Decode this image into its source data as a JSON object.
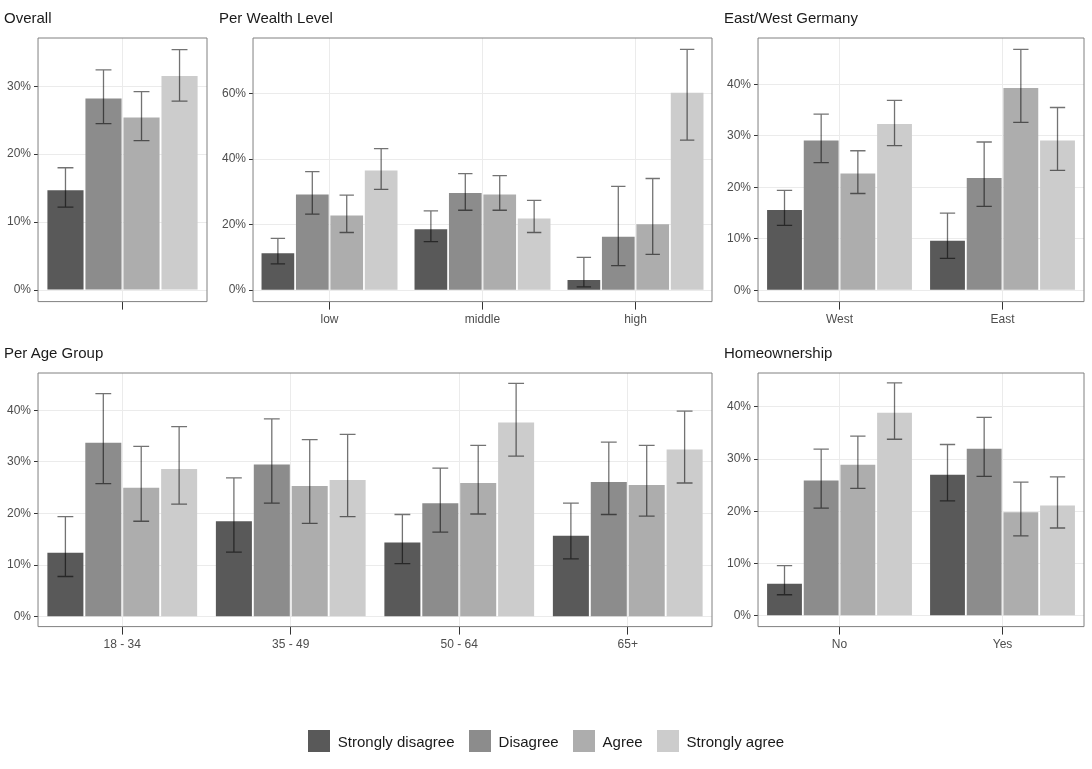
{
  "chart_data": [
    {
      "type": "bar",
      "title": "Overall",
      "categories": [
        null
      ],
      "legend": "bottom",
      "grid": true,
      "ylim": [
        -1.7,
        37.1
      ],
      "yticks": [
        {
          "value": 0,
          "label": "0%"
        },
        {
          "value": 10,
          "label": "10%"
        },
        {
          "value": 20,
          "label": "20%"
        },
        {
          "value": 30,
          "label": "30%"
        }
      ],
      "series": [
        {
          "name": "Strongly disagree",
          "color": "#595959",
          "values": [
            14.7
          ],
          "errors": [
            [
              12.2,
              18.0
            ]
          ]
        },
        {
          "name": "Disagree",
          "color": "#8c8c8c",
          "values": [
            28.2
          ],
          "errors": [
            [
              24.5,
              32.4
            ]
          ]
        },
        {
          "name": "Agree",
          "color": "#adadad",
          "values": [
            25.4
          ],
          "errors": [
            [
              22.0,
              29.2
            ]
          ]
        },
        {
          "name": "Strongly agree",
          "color": "#cccccc",
          "values": [
            31.5
          ],
          "errors": [
            [
              27.8,
              35.4
            ]
          ]
        }
      ]
    },
    {
      "type": "bar",
      "title": "Per Wealth Level",
      "categories": [
        "low",
        "middle",
        "high"
      ],
      "grid": true,
      "ylim": [
        -3.5,
        77
      ],
      "yticks": [
        {
          "value": 0,
          "label": "0%"
        },
        {
          "value": 20,
          "label": "20%"
        },
        {
          "value": 40,
          "label": "40%"
        },
        {
          "value": 60,
          "label": "60%"
        }
      ],
      "series": [
        {
          "color": "#595959",
          "values": [
            11.3,
            18.6,
            3.1
          ],
          "errors": [
            [
              8,
              15.8
            ],
            [
              14.8,
              24.2
            ],
            [
              1,
              10
            ]
          ]
        },
        {
          "color": "#8c8c8c",
          "values": [
            29.2,
            29.7,
            16.3
          ],
          "errors": [
            [
              23.2,
              36.2
            ],
            [
              24.4,
              35.6
            ],
            [
              7.5,
              31.7
            ]
          ]
        },
        {
          "color": "#adadad",
          "values": [
            22.8,
            29.2,
            20.1
          ],
          "errors": [
            [
              17.6,
              29
            ],
            [
              24.4,
              35
            ],
            [
              10.9,
              34.1
            ]
          ]
        },
        {
          "color": "#cccccc",
          "values": [
            36.5,
            21.9,
            60.3
          ],
          "errors": [
            [
              30.8,
              43.2
            ],
            [
              17.6,
              27.4
            ],
            [
              45.8,
              73.5
            ]
          ]
        }
      ]
    },
    {
      "type": "bar",
      "title": "East/West Germany",
      "categories": [
        "West",
        "East"
      ],
      "grid": true,
      "ylim": [
        -2.2,
        49
      ],
      "yticks": [
        {
          "value": 0,
          "label": "0%"
        },
        {
          "value": 10,
          "label": "10%"
        },
        {
          "value": 20,
          "label": "20%"
        },
        {
          "value": 30,
          "label": "30%"
        },
        {
          "value": 40,
          "label": "40%"
        }
      ],
      "series": [
        {
          "color": "#595959",
          "values": [
            15.6,
            9.6
          ],
          "errors": [
            [
              12.6,
              19.4
            ],
            [
              6.2,
              15
            ]
          ]
        },
        {
          "color": "#8c8c8c",
          "values": [
            29.1,
            21.8
          ],
          "errors": [
            [
              24.8,
              34.2
            ],
            [
              16.3,
              28.8
            ]
          ]
        },
        {
          "color": "#adadad",
          "values": [
            22.7,
            39.3
          ],
          "errors": [
            [
              18.8,
              27.1
            ],
            [
              32.6,
              46.8
            ]
          ]
        },
        {
          "color": "#cccccc",
          "values": [
            32.3,
            29.1
          ],
          "errors": [
            [
              28.1,
              36.9
            ],
            [
              23.3,
              35.5
            ]
          ]
        }
      ]
    },
    {
      "type": "bar",
      "title": "Per Age Group",
      "categories": [
        "18 - 34",
        "35 - 49",
        "50 - 64",
        "65+"
      ],
      "grid": true,
      "ylim": [
        -1.9,
        47.2
      ],
      "yticks": [
        {
          "value": 0,
          "label": "0%"
        },
        {
          "value": 10,
          "label": "10%"
        },
        {
          "value": 20,
          "label": "20%"
        },
        {
          "value": 30,
          "label": "30%"
        },
        {
          "value": 40,
          "label": "40%"
        }
      ],
      "series": [
        {
          "color": "#595959",
          "values": [
            12.4,
            18.5,
            14.4,
            15.7
          ],
          "errors": [
            [
              7.8,
              19.4
            ],
            [
              12.5,
              26.9
            ],
            [
              10.3,
              19.8
            ],
            [
              11.2,
              22
            ]
          ]
        },
        {
          "color": "#8c8c8c",
          "values": [
            33.7,
            29.5,
            22,
            26.1
          ],
          "errors": [
            [
              25.8,
              43.2
            ],
            [
              22,
              38.3
            ],
            [
              16.4,
              28.8
            ],
            [
              19.8,
              33.8
            ]
          ]
        },
        {
          "color": "#adadad",
          "values": [
            25,
            25.3,
            25.9,
            25.5
          ],
          "errors": [
            [
              18.5,
              33
            ],
            [
              18.1,
              34.3
            ],
            [
              19.9,
              33.2
            ],
            [
              19.5,
              33.2
            ]
          ]
        },
        {
          "color": "#cccccc",
          "values": [
            28.6,
            26.5,
            37.6,
            32.4
          ],
          "errors": [
            [
              21.8,
              36.8
            ],
            [
              19.4,
              35.3
            ],
            [
              31.1,
              45.2
            ],
            [
              25.9,
              39.8
            ]
          ]
        }
      ]
    },
    {
      "type": "bar",
      "title": "Homeownership",
      "categories": [
        "No",
        "Yes"
      ],
      "grid": true,
      "ylim": [
        -2.1,
        46.5
      ],
      "yticks": [
        {
          "value": 0,
          "label": "0%"
        },
        {
          "value": 10,
          "label": "10%"
        },
        {
          "value": 20,
          "label": "20%"
        },
        {
          "value": 30,
          "label": "30%"
        },
        {
          "value": 40,
          "label": "40%"
        }
      ],
      "series": [
        {
          "color": "#595959",
          "values": [
            6.1,
            27
          ],
          "errors": [
            [
              4,
              9.6
            ],
            [
              22,
              32.8
            ]
          ]
        },
        {
          "color": "#8c8c8c",
          "values": [
            25.9,
            32
          ],
          "errors": [
            [
              20.6,
              31.9
            ],
            [
              26.7,
              38
            ]
          ]
        },
        {
          "color": "#adadad",
          "values": [
            28.9,
            19.8
          ],
          "errors": [
            [
              24.4,
              34.4
            ],
            [
              15.3,
              25.6
            ]
          ]
        },
        {
          "color": "#cccccc",
          "values": [
            38.9,
            21.1
          ],
          "errors": [
            [
              33.8,
              44.6
            ],
            [
              16.8,
              26.6
            ]
          ]
        }
      ]
    }
  ]
}
